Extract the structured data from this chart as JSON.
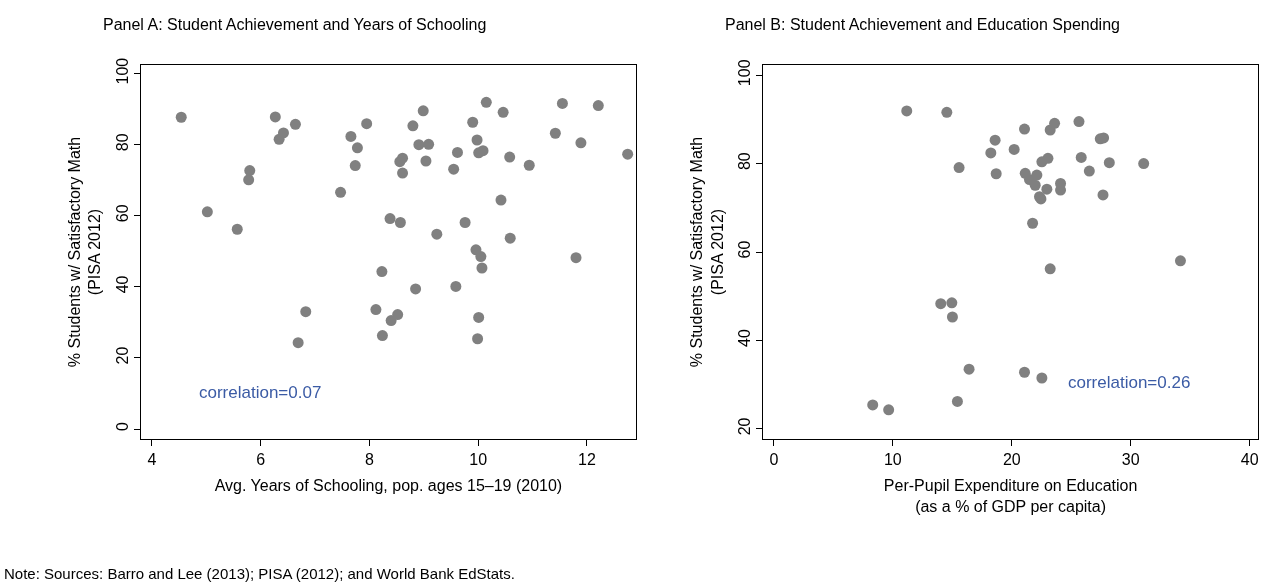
{
  "chart_data": [
    {
      "type": "scatter",
      "title": "Panel A: Student Achievement and Years of Schooling",
      "xlabel": "Avg. Years of Schooling, pop. ages 15–19 (2010)",
      "ylabel": "% Students w/ Satisfactory Math\n(PISA 2012)",
      "x": [
        4.54,
        5.02,
        5.57,
        5.8,
        5.78,
        6.27,
        6.34,
        6.42,
        6.64,
        6.83,
        6.69,
        7.47,
        7.66,
        7.78,
        7.74,
        7.95,
        8.23,
        8.12,
        8.24,
        8.4,
        8.52,
        8.38,
        8.57,
        8.61,
        8.56,
        8.61,
        8.8,
        8.99,
        8.91,
        9.09,
        9.04,
        8.85,
        9.24,
        9.59,
        9.55,
        9.62,
        9.76,
        9.9,
        9.98,
        10.01,
        10.09,
        10.15,
        9.96,
        10.05,
        10.07,
        10.01,
        9.99,
        10.46,
        10.42,
        10.58,
        10.59,
        10.94,
        11.42,
        11.55,
        11.89,
        11.8,
        12.21,
        12.75
      ],
      "values": [
        87.7,
        61.1,
        56.2,
        72.7,
        70.1,
        87.8,
        81.5,
        83.3,
        85.7,
        33.0,
        24.3,
        66.6,
        82.3,
        79.1,
        74.1,
        85.9,
        44.3,
        33.6,
        26.3,
        30.5,
        32.2,
        59.2,
        58.1,
        76.2,
        75.2,
        72.0,
        85.3,
        89.5,
        80.0,
        80.1,
        75.4,
        39.4,
        54.8,
        40.1,
        73.1,
        77.8,
        58.1,
        86.3,
        81.3,
        77.7,
        78.3,
        91.9,
        50.4,
        48.5,
        45.3,
        31.4,
        25.4,
        89.1,
        64.4,
        76.5,
        53.7,
        74.2,
        83.2,
        91.6,
        80.5,
        48.2,
        91.0,
        77.3
      ],
      "color": "#808080",
      "marker": "circle",
      "xlim": [
        3.8,
        12.9
      ],
      "ylim": [
        -2.8,
        102.4
      ],
      "xticks": [
        4,
        6,
        8,
        10,
        12
      ],
      "yticks": [
        0,
        20,
        40,
        60,
        80,
        100
      ],
      "annotations": [
        "correlation=0.07"
      ]
    },
    {
      "type": "scatter",
      "title": "Panel B: Student Achievement and Education Spending",
      "xlabel": "Per-Pupil Expenditure on Education\n(as a % of GDP per capita)",
      "ylabel": "% Students w/ Satisfactory Math\n(PISA 2012)",
      "x": [
        11.17,
        14.54,
        18.6,
        18.24,
        15.57,
        18.69,
        14.03,
        14.96,
        15.01,
        16.41,
        15.43,
        8.31,
        9.65,
        21.07,
        20.2,
        23.23,
        23.6,
        25.65,
        27.44,
        27.72,
        22.53,
        23.04,
        25.84,
        28.2,
        31.09,
        26.52,
        21.13,
        22.11,
        21.49,
        21.97,
        24.1,
        24.1,
        22.95,
        22.33,
        22.45,
        27.67,
        21.75,
        23.23,
        34.18,
        21.07,
        22.53
      ],
      "values": [
        91.9,
        91.6,
        85.3,
        82.4,
        79.1,
        77.7,
        48.3,
        48.5,
        45.3,
        33.5,
        26.2,
        25.4,
        24.3,
        87.8,
        83.2,
        87.6,
        89.1,
        89.5,
        85.6,
        85.8,
        80.4,
        81.2,
        81.4,
        80.2,
        80.0,
        78.3,
        77.8,
        77.4,
        76.4,
        75.1,
        75.5,
        74.0,
        74.2,
        72.5,
        72.0,
        72.9,
        66.5,
        56.2,
        58.0,
        32.8,
        31.5
      ],
      "color": "#808080",
      "marker": "circle",
      "xlim": [
        -0.9,
        40.7
      ],
      "ylim": [
        17.7,
        102.3
      ],
      "xticks": [
        0,
        10,
        20,
        30,
        40
      ],
      "yticks": [
        20,
        40,
        60,
        80,
        100
      ],
      "annotations": [
        "correlation=0.26",
        "Note: Sources: Barro and Lee (2013); PISA (2012); and World Bank EdStats."
      ]
    }
  ]
}
